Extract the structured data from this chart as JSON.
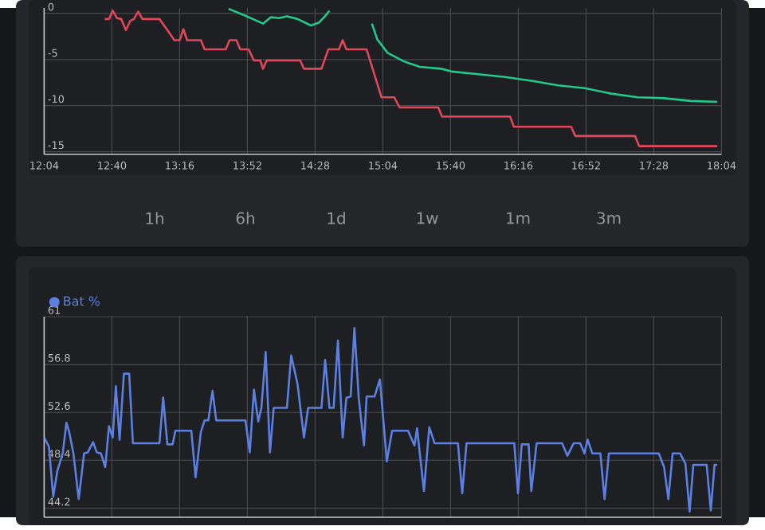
{
  "chart_data": [
    {
      "type": "line",
      "xlim": [
        12.0667,
        18.0667
      ],
      "xticks": [
        {
          "value": 12.0667,
          "label": "12:04"
        },
        {
          "value": 12.6667,
          "label": "12:40"
        },
        {
          "value": 13.2667,
          "label": "13:16"
        },
        {
          "value": 13.8667,
          "label": "13:52"
        },
        {
          "value": 14.4667,
          "label": "14:28"
        },
        {
          "value": 15.0667,
          "label": "15:04"
        },
        {
          "value": 15.6667,
          "label": "15:40"
        },
        {
          "value": 16.2667,
          "label": "16:16"
        },
        {
          "value": 16.8667,
          "label": "16:52"
        },
        {
          "value": 17.4667,
          "label": "17:28"
        },
        {
          "value": 18.0667,
          "label": "18:04"
        }
      ],
      "ylim": [
        -15.3,
        0.6
      ],
      "yticks": [
        0,
        -5,
        -10,
        -15
      ],
      "grid": true,
      "series": [
        {
          "color": "#e0475a",
          "x": [
            12.603,
            12.641,
            12.674,
            12.711,
            12.749,
            12.791,
            12.829,
            12.862,
            12.9,
            12.937,
            13.088,
            13.158,
            13.22,
            13.267,
            13.3,
            13.333,
            13.455,
            13.488,
            13.676,
            13.709,
            13.77,
            13.803,
            13.878,
            13.925,
            13.982,
            14.005,
            14.038,
            14.335,
            14.368,
            14.523,
            14.584,
            14.678,
            14.711,
            14.744,
            14.923,
            15.055,
            15.168,
            15.215,
            15.558,
            15.591,
            16.194,
            16.227,
            16.735,
            16.772,
            17.3,
            17.337,
            18.029
          ],
          "values": [
            -0.6,
            -0.6,
            0.3,
            -0.5,
            -0.6,
            -1.8,
            -0.8,
            -0.6,
            0.2,
            -0.6,
            -0.6,
            -1.8,
            -2.9,
            -2.9,
            -1.7,
            -2.9,
            -2.9,
            -3.9,
            -3.9,
            -2.9,
            -2.9,
            -3.9,
            -3.9,
            -5.1,
            -5.1,
            -6.0,
            -5.1,
            -5.1,
            -6.0,
            -6.0,
            -3.9,
            -3.9,
            -2.9,
            -3.9,
            -3.9,
            -9.1,
            -9.1,
            -10.2,
            -10.2,
            -11.2,
            -11.2,
            -12.3,
            -12.3,
            -13.3,
            -13.3,
            -14.4,
            -14.4
          ]
        },
        {
          "color": "#22c98b",
          "x": [
            13.7,
            13.841,
            14.005,
            14.076,
            14.147,
            14.217,
            14.311,
            14.429,
            14.5,
            14.547,
            14.594,
            14.8,
            14.97,
            15.017,
            15.111,
            15.253,
            15.394,
            15.582,
            15.676,
            15.911,
            16.147,
            16.382,
            16.617,
            16.853,
            17.088,
            17.323,
            17.558,
            17.794,
            18.029
          ],
          "values": [
            0.5,
            -0.2,
            -1.1,
            -0.4,
            -0.5,
            -0.3,
            -0.6,
            -1.3,
            -1.0,
            -0.4,
            0.3,
            null,
            -1.1,
            -2.8,
            -4.3,
            -5.2,
            -5.8,
            -6.0,
            -6.3,
            -6.6,
            -6.9,
            -7.3,
            -7.8,
            -8.1,
            -8.7,
            -9.1,
            -9.2,
            -9.5,
            -9.6
          ]
        }
      ],
      "annotations": [
        "1h",
        "6h",
        "1d",
        "1w",
        "1m",
        "3m"
      ]
    },
    {
      "type": "line",
      "xlim": [
        12.0667,
        18.0667
      ],
      "xticks": [
        {
          "value": 12.0667,
          "label": null
        },
        {
          "value": 12.6667,
          "label": null
        },
        {
          "value": 13.2667,
          "label": null
        },
        {
          "value": 13.8667,
          "label": null
        },
        {
          "value": 14.4667,
          "label": null
        },
        {
          "value": 15.0667,
          "label": null
        },
        {
          "value": 15.6667,
          "label": null
        },
        {
          "value": 16.2667,
          "label": null
        },
        {
          "value": 16.8667,
          "label": null
        },
        {
          "value": 17.4667,
          "label": null
        },
        {
          "value": 18.0667,
          "label": null
        }
      ],
      "tick_labels": "y",
      "ylim": [
        43.4,
        61
      ],
      "yticks": [
        44.2,
        48.4,
        52.6,
        56.8,
        61
      ],
      "grid": true,
      "legend": "top left",
      "series": [
        {
          "name": "Bat %",
          "color": "#5b80e2",
          "x": [
            12.067,
            12.109,
            12.147,
            12.184,
            12.231,
            12.264,
            12.288,
            12.326,
            12.373,
            12.42,
            12.453,
            12.5,
            12.533,
            12.57,
            12.608,
            12.641,
            12.674,
            12.702,
            12.735,
            12.773,
            12.82,
            12.853,
            13.088,
            13.121,
            13.158,
            13.205,
            13.229,
            13.37,
            13.408,
            13.455,
            13.488,
            13.521,
            13.558,
            13.591,
            13.85,
            13.888,
            13.925,
            13.963,
            13.991,
            14.029,
            14.067,
            14.1,
            14.217,
            14.255,
            14.311,
            14.368,
            14.405,
            14.523,
            14.556,
            14.594,
            14.631,
            14.669,
            14.711,
            14.744,
            14.782,
            14.815,
            14.853,
            14.9,
            14.923,
            14.994,
            15.041,
            15.102,
            15.149,
            15.29,
            15.347,
            15.37,
            15.431,
            15.478,
            15.525,
            15.732,
            15.77,
            15.808,
            16.231,
            16.264,
            16.297,
            16.358,
            16.382,
            16.429,
            16.655,
            16.702,
            16.758,
            16.815,
            16.852,
            16.881,
            16.923,
            16.994,
            17.031,
            17.069,
            17.511,
            17.558,
            17.596,
            17.634,
            17.7,
            17.747,
            17.784,
            17.817,
            17.935,
            17.972,
            18.005,
            18.029
          ],
          "values": [
            50.4,
            49.6,
            45.2,
            47.5,
            49.0,
            51.7,
            50.9,
            49.0,
            45.0,
            49.0,
            49.1,
            50.0,
            49.1,
            49.0,
            47.8,
            51.4,
            50.4,
            54.9,
            50.2,
            56.0,
            56.0,
            49.9,
            49.9,
            53.9,
            49.8,
            49.8,
            51.0,
            51.0,
            46.9,
            50.9,
            51.9,
            51.9,
            54.5,
            51.9,
            51.9,
            49.1,
            54.6,
            51.8,
            53.0,
            57.9,
            49.1,
            53.0,
            53.0,
            57.6,
            55.1,
            50.4,
            53.0,
            53.0,
            57.2,
            53.0,
            53.0,
            58.9,
            50.4,
            53.9,
            54.0,
            60.0,
            53.9,
            49.7,
            54.0,
            54.0,
            55.5,
            48.3,
            51.0,
            51.0,
            49.7,
            51.2,
            45.7,
            51.3,
            49.9,
            49.9,
            45.5,
            49.9,
            49.9,
            45.5,
            49.8,
            49.8,
            45.7,
            49.9,
            49.9,
            48.8,
            49.9,
            49.9,
            49.0,
            50.2,
            49.0,
            49.0,
            45.0,
            49.0,
            49.0,
            47.8,
            45.0,
            49.0,
            49.0,
            48.1,
            43.9,
            48.0,
            48.0,
            44.0,
            48.0,
            48.0
          ]
        }
      ]
    }
  ]
}
